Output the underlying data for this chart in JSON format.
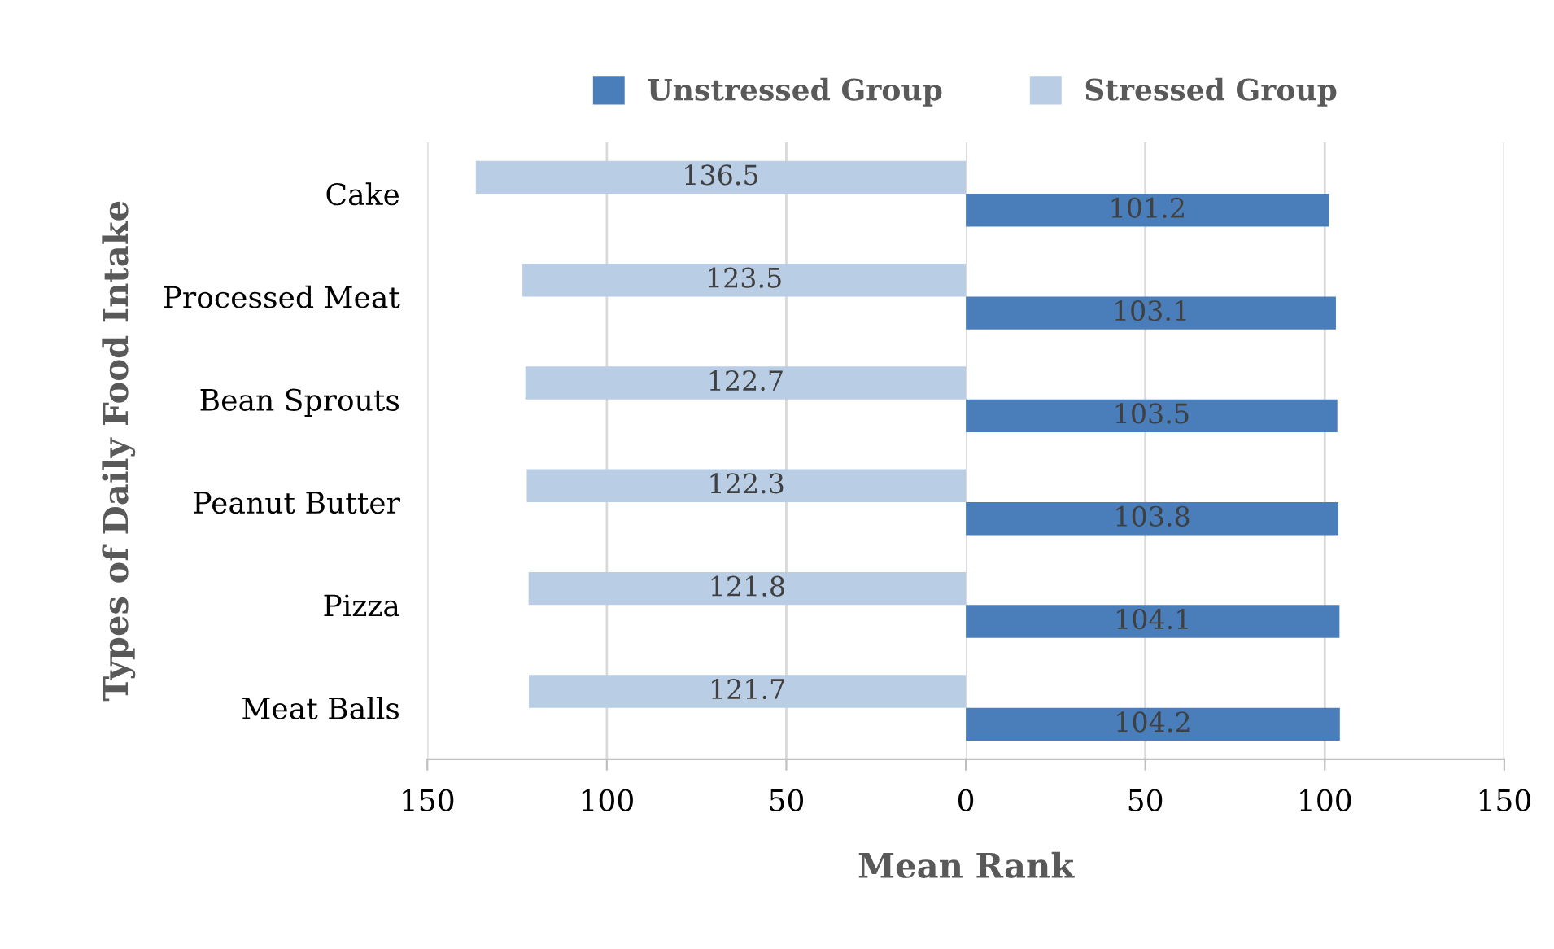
{
  "chart_data": [
    {
      "type": "bar",
      "orientation": "horizontal",
      "xlabel": "Mean Rank",
      "ylabel": "Types of Daily Food Intake",
      "categories": [
        "Cake",
        "Processed Meat",
        "Bean Sprouts",
        "Peanut Butter",
        "Pizza",
        "Meat Balls"
      ],
      "series": [
        {
          "name": "Stressed Group",
          "color": "#b9cde5",
          "values": [
            136.5,
            123.5,
            122.7,
            122.3,
            121.8,
            121.7
          ]
        }
      ],
      "xlim": [
        150,
        0
      ],
      "xticks": [
        150,
        100,
        50
      ],
      "data_labels": true,
      "grid": "x",
      "legend": "top"
    },
    {
      "type": "bar",
      "orientation": "horizontal",
      "categories": [
        null,
        null,
        null,
        null,
        null,
        null
      ],
      "series": [
        {
          "name": "Unstressed Group",
          "color": "#4a7ebb",
          "values": [
            101.2,
            103.1,
            103.5,
            103.8,
            104.1,
            104.2
          ]
        }
      ],
      "xlim": [
        0,
        150
      ],
      "xticks": [
        0,
        50,
        100,
        150
      ],
      "data_labels": true,
      "grid": "x",
      "legend": "top",
      "tick_labels": "x"
    }
  ]
}
